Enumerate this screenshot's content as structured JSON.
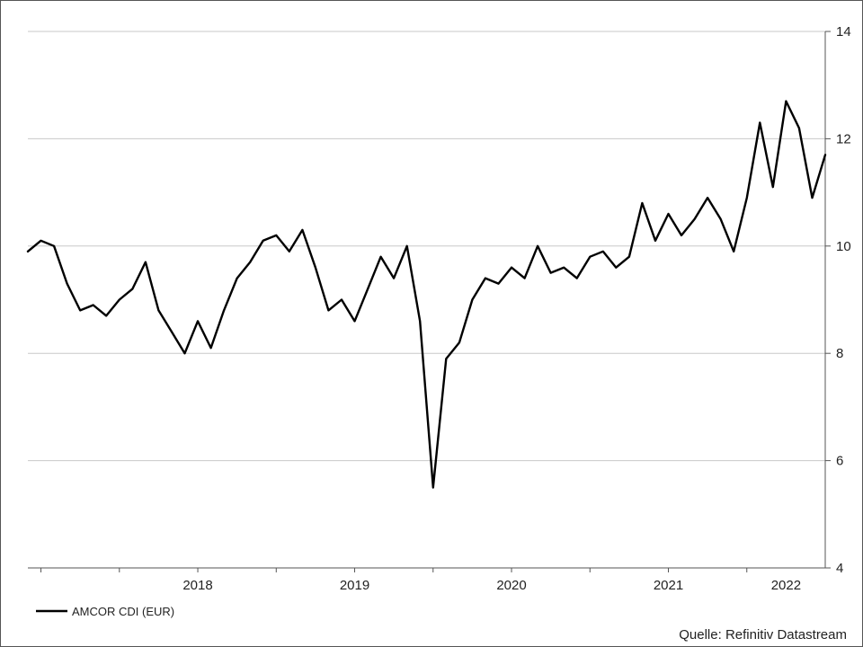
{
  "chart_data": {
    "type": "line",
    "title": "",
    "xlabel": "",
    "ylabel": "",
    "ylim": [
      4,
      14
    ],
    "y_ticks": [
      "4",
      "6",
      "8",
      "10",
      "12",
      "14"
    ],
    "x_tick_labels": [
      "2018",
      "2019",
      "2020",
      "2021",
      "2022"
    ],
    "xlim": [
      "2017-06",
      "2022-07"
    ],
    "grid": "horizontal",
    "legend_position": "bottom-left",
    "series": [
      {
        "name": "AMCOR CDI (EUR)",
        "color": "#000000",
        "x": [
          "2017-06",
          "2017-07",
          "2017-08",
          "2017-09",
          "2017-10",
          "2017-11",
          "2017-12",
          "2018-01",
          "2018-02",
          "2018-03",
          "2018-04",
          "2018-05",
          "2018-06",
          "2018-07",
          "2018-08",
          "2018-09",
          "2018-10",
          "2018-11",
          "2018-12",
          "2019-01",
          "2019-02",
          "2019-03",
          "2019-04",
          "2019-05",
          "2019-06",
          "2019-07",
          "2019-08",
          "2019-09",
          "2019-10",
          "2019-11",
          "2019-12",
          "2020-01",
          "2020-02",
          "2020-03",
          "2020-04",
          "2020-05",
          "2020-06",
          "2020-07",
          "2020-08",
          "2020-09",
          "2020-10",
          "2020-11",
          "2020-12",
          "2021-01",
          "2021-02",
          "2021-03",
          "2021-04",
          "2021-05",
          "2021-06",
          "2021-07",
          "2021-08",
          "2021-09",
          "2021-10",
          "2021-11",
          "2021-12",
          "2022-01",
          "2022-02",
          "2022-03",
          "2022-04",
          "2022-05",
          "2022-06",
          "2022-07"
        ],
        "values": [
          9.9,
          10.1,
          10.0,
          9.3,
          8.8,
          8.9,
          8.7,
          9.0,
          9.2,
          9.7,
          8.8,
          8.4,
          8.0,
          8.6,
          8.1,
          8.8,
          9.4,
          9.7,
          10.1,
          10.2,
          9.9,
          10.3,
          9.6,
          8.8,
          9.0,
          8.6,
          9.2,
          9.8,
          9.4,
          10.0,
          8.6,
          5.5,
          7.9,
          8.2,
          9.0,
          9.4,
          9.3,
          9.6,
          9.4,
          10.0,
          9.5,
          9.6,
          9.4,
          9.8,
          9.9,
          9.6,
          9.8,
          10.8,
          10.1,
          10.6,
          10.2,
          10.5,
          10.9,
          10.5,
          9.9,
          10.9,
          12.3,
          11.1,
          12.7,
          12.2,
          10.9,
          11.7
        ]
      }
    ]
  },
  "legend": {
    "label": "AMCOR CDI (EUR)"
  },
  "source": "Quelle: Refinitiv Datastream"
}
